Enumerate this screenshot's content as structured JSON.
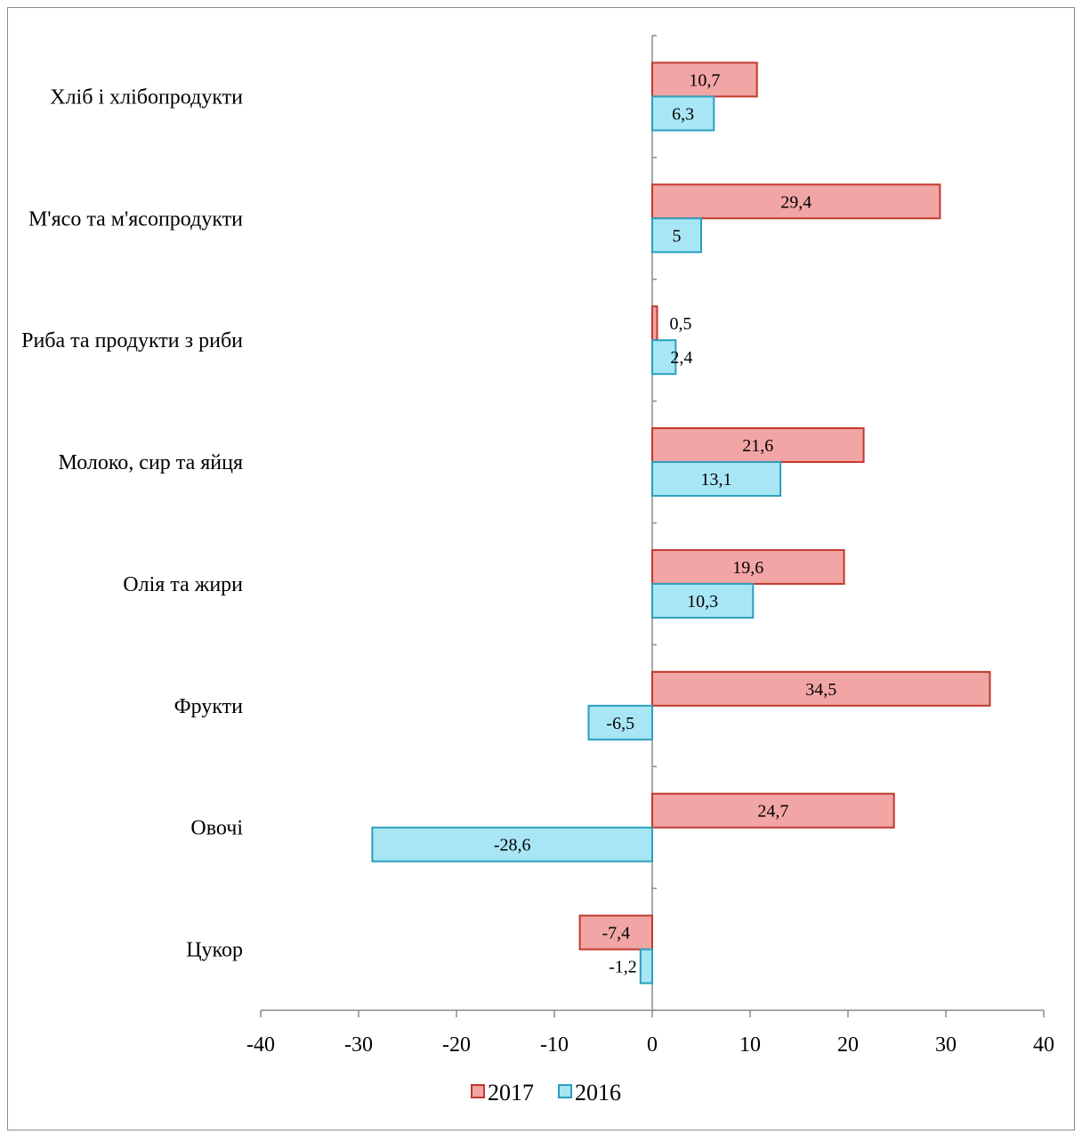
{
  "chart_data": {
    "type": "bar",
    "orientation": "horizontal",
    "categories": [
      "Хліб і хлібопродукти",
      "М'ясо та м'ясопродукти",
      "Риба та продукти з риби",
      "Молоко, сир та яйця",
      "Олія та жири",
      "Фрукти",
      "Овочі",
      "Цукор"
    ],
    "series": [
      {
        "name": "2017",
        "color": "#f2a5a5",
        "stroke": "#c0392b",
        "values": [
          10.7,
          29.4,
          0.5,
          21.6,
          19.6,
          34.5,
          24.7,
          -7.4
        ],
        "labels": [
          "10,7",
          "29,4",
          "0,5",
          "21,6",
          "19,6",
          "34,5",
          "24,7",
          "-7,4"
        ]
      },
      {
        "name": "2016",
        "color": "#a8e6f5",
        "stroke": "#2a9fbf",
        "values": [
          6.3,
          5,
          2.4,
          13.1,
          10.3,
          -6.5,
          -28.6,
          -1.2
        ],
        "labels": [
          "6,3",
          "5",
          "2,4",
          "13,1",
          "10,3",
          "-6,5",
          "-28,6",
          "-1,2"
        ]
      }
    ],
    "xlim": [
      -40,
      40
    ],
    "xticks": [
      -40,
      -30,
      -20,
      -10,
      0,
      10,
      20,
      30,
      40
    ],
    "xtick_labels": [
      "-40",
      "-30",
      "-20",
      "-10",
      "0",
      "10",
      "20",
      "30",
      "40"
    ],
    "legend": {
      "position": "bottom",
      "order": [
        "2017",
        "2016"
      ]
    },
    "grid": false
  }
}
